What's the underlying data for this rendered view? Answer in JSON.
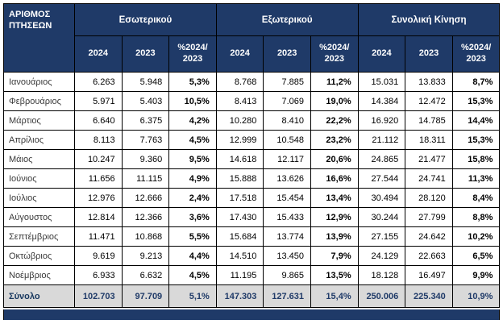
{
  "table": {
    "corner_label": "ΑΡΙΘΜΟΣ ΠΤΗΣΕΩΝ",
    "groups": [
      {
        "label": "Εσωτερικού"
      },
      {
        "label": "Εξωτερικού"
      },
      {
        "label": "Συνολική Κίνηση"
      }
    ],
    "sub_headers": [
      "2024",
      "2023",
      "%2024/\n2023"
    ],
    "rows": [
      {
        "month": "Ιανουάριος",
        "values": [
          "6.263",
          "5.948",
          "5,3%",
          "8.768",
          "7.885",
          "11,2%",
          "15.031",
          "13.833",
          "8,7%"
        ]
      },
      {
        "month": "Φεβρουάριος",
        "values": [
          "5.971",
          "5.403",
          "10,5%",
          "8.413",
          "7.069",
          "19,0%",
          "14.384",
          "12.472",
          "15,3%"
        ]
      },
      {
        "month": "Μάρτιος",
        "values": [
          "6.640",
          "6.375",
          "4,2%",
          "10.280",
          "8.410",
          "22,2%",
          "16.920",
          "14.785",
          "14,4%"
        ]
      },
      {
        "month": "Απρίλιος",
        "values": [
          "8.113",
          "7.763",
          "4,5%",
          "12.999",
          "10.548",
          "23,2%",
          "21.112",
          "18.311",
          "15,3%"
        ]
      },
      {
        "month": "Μάιος",
        "values": [
          "10.247",
          "9.360",
          "9,5%",
          "14.618",
          "12.117",
          "20,6%",
          "24.865",
          "21.477",
          "15,8%"
        ]
      },
      {
        "month": "Ιούνιος",
        "values": [
          "11.656",
          "11.115",
          "4,9%",
          "15.888",
          "13.626",
          "16,6%",
          "27.544",
          "24.741",
          "11,3%"
        ]
      },
      {
        "month": "Ιούλιος",
        "values": [
          "12.976",
          "12.666",
          "2,4%",
          "17.518",
          "15.454",
          "13,4%",
          "30.494",
          "28.120",
          "8,4%"
        ]
      },
      {
        "month": "Αύγουστος",
        "values": [
          "12.814",
          "12.366",
          "3,6%",
          "17.430",
          "15.433",
          "12,9%",
          "30.244",
          "27.799",
          "8,8%"
        ]
      },
      {
        "month": "Σεπτέμβριος",
        "values": [
          "11.471",
          "10.868",
          "5,5%",
          "15.684",
          "13.774",
          "13,9%",
          "27.155",
          "24.642",
          "10,2%"
        ]
      },
      {
        "month": "Οκτώβριος",
        "values": [
          "9.619",
          "9.213",
          "4,4%",
          "14.510",
          "13.450",
          "7,9%",
          "24.129",
          "22.663",
          "6,5%"
        ]
      },
      {
        "month": "Νοέμβριος",
        "values": [
          "6.933",
          "6.632",
          "4,5%",
          "11.195",
          "9.865",
          "13,5%",
          "18.128",
          "16.497",
          "9,9%"
        ]
      }
    ],
    "total_row": {
      "label": "Σύνολο",
      "values": [
        "102.703",
        "97.709",
        "5,1%",
        "147.303",
        "127.631",
        "15,4%",
        "250.006",
        "225.340",
        "10,9%"
      ]
    },
    "colors": {
      "header_bg": "#1f3a68",
      "header_text": "#ffffff",
      "total_bg": "#d9d9d9",
      "total_text": "#1f3a68",
      "border": "#000000"
    }
  }
}
